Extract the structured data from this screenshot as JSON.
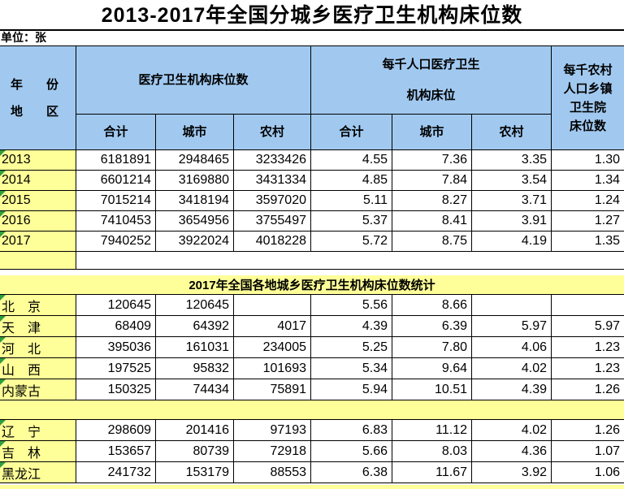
{
  "title": "2013-2017年全国分城乡医疗卫生机构床位数",
  "unit_label": "单位：张",
  "colors": {
    "header_blue": "#A1C9F0",
    "row_yellow": "#FFFF99",
    "triangle_green": "#2F9E3E",
    "border": "#000000"
  },
  "table": {
    "corner_header_line1": "年　份",
    "corner_header_line2": "地　区",
    "group1_header": "医疗卫生机构床位数",
    "group2_header_line1": "每千人口医疗卫生",
    "group2_header_line2": "机构床位",
    "last_col_header_lines": [
      "每千农村",
      "人口乡镇",
      "卫生院",
      "床位数"
    ],
    "subheaders": [
      "合计",
      "城市",
      "农村",
      "合计",
      "城市",
      "农村"
    ],
    "year_rows": [
      {
        "label": "2013",
        "cells": [
          "6181891",
          "2948465",
          "3233426",
          "4.55",
          "7.36",
          "3.35",
          "1.30"
        ]
      },
      {
        "label": "2014",
        "cells": [
          "6601214",
          "3169880",
          "3431334",
          "4.85",
          "7.84",
          "3.54",
          "1.34"
        ]
      },
      {
        "label": "2015",
        "cells": [
          "7015214",
          "3418194",
          "3597020",
          "5.11",
          "8.27",
          "3.71",
          "1.24"
        ]
      },
      {
        "label": "2016",
        "cells": [
          "7410453",
          "3654956",
          "3755497",
          "5.37",
          "8.41",
          "3.91",
          "1.27"
        ]
      },
      {
        "label": "2017",
        "cells": [
          "7940252",
          "3922024",
          "4018228",
          "5.72",
          "8.75",
          "4.19",
          "1.35"
        ]
      }
    ],
    "section_title": "2017年全国各地城乡医疗卫生机构床位数统计",
    "provinces_a": [
      {
        "label": "北　京",
        "cells": [
          "120645",
          "120645",
          "",
          "5.56",
          "8.66",
          "",
          ""
        ]
      },
      {
        "label": "天　津",
        "cells": [
          "68409",
          "64392",
          "4017",
          "4.39",
          "6.39",
          "5.97",
          "5.97"
        ]
      },
      {
        "label": "河　北",
        "cells": [
          "395036",
          "161031",
          "234005",
          "5.25",
          "7.80",
          "4.06",
          "1.23"
        ]
      },
      {
        "label": "山　西",
        "cells": [
          "197525",
          "95832",
          "101693",
          "5.34",
          "9.64",
          "4.02",
          "1.23"
        ]
      },
      {
        "label": "内蒙古",
        "cells": [
          "150325",
          "74434",
          "75891",
          "5.94",
          "10.51",
          "4.39",
          "1.26"
        ]
      }
    ],
    "provinces_b": [
      {
        "label": "辽　宁",
        "cells": [
          "298609",
          "201416",
          "97193",
          "6.83",
          "11.12",
          "4.02",
          "1.26"
        ]
      },
      {
        "label": "吉　林",
        "cells": [
          "153657",
          "80739",
          "72918",
          "5.66",
          "8.03",
          "4.36",
          "1.07"
        ]
      },
      {
        "label": "黑龙江",
        "cells": [
          "241732",
          "153179",
          "88553",
          "6.38",
          "11.67",
          "3.92",
          "1.06"
        ]
      }
    ]
  }
}
